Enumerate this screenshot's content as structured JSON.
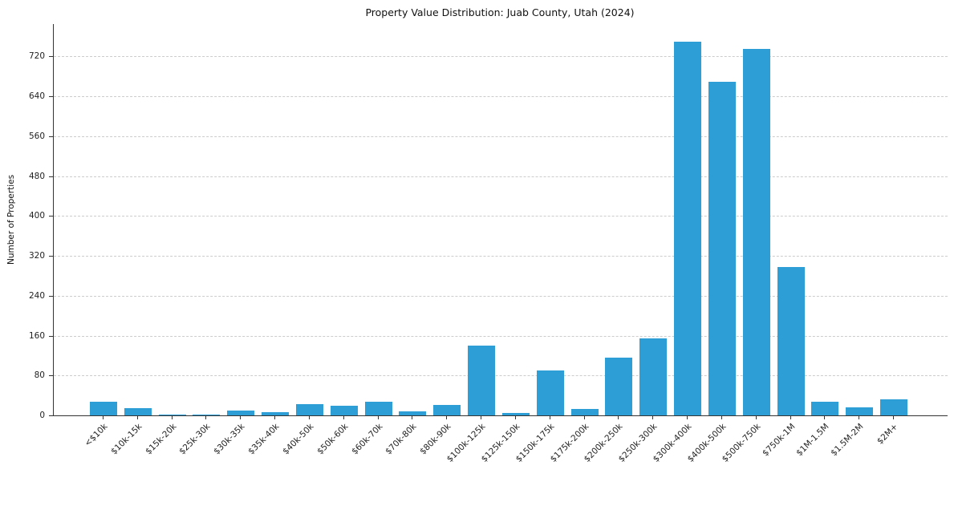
{
  "chart_data": {
    "type": "bar",
    "title": "Property Value Distribution: Juab County, Utah (2024)",
    "xlabel": "",
    "ylabel": "Number of Properties",
    "categories": [
      "<$10k",
      "$10k-15k",
      "$15k-20k",
      "$25k-30k",
      "$30k-35k",
      "$35k-40k",
      "$40k-50k",
      "$50k-60k",
      "$60k-70k",
      "$70k-80k",
      "$80k-90k",
      "$100k-125k",
      "$125k-150k",
      "$150k-175k",
      "$175k-200k",
      "$200k-250k",
      "$250k-300k",
      "$300k-400k",
      "$400k-500k",
      "$500k-750k",
      "$750k-1M",
      "$1M-1.5M",
      "$1.5M-2M",
      "$2M+"
    ],
    "values": [
      28,
      14,
      2,
      1,
      10,
      6,
      23,
      20,
      28,
      8,
      21,
      140,
      5,
      90,
      13,
      116,
      155,
      750,
      670,
      735,
      298,
      28,
      16,
      33
    ],
    "yticks": [
      0,
      80,
      160,
      240,
      320,
      400,
      480,
      560,
      640,
      720
    ],
    "ylim": [
      0,
      785
    ],
    "bar_color": "#2e9ed7",
    "grid": "dashed-horizontal",
    "legend": "none",
    "background": "#ffffff"
  }
}
